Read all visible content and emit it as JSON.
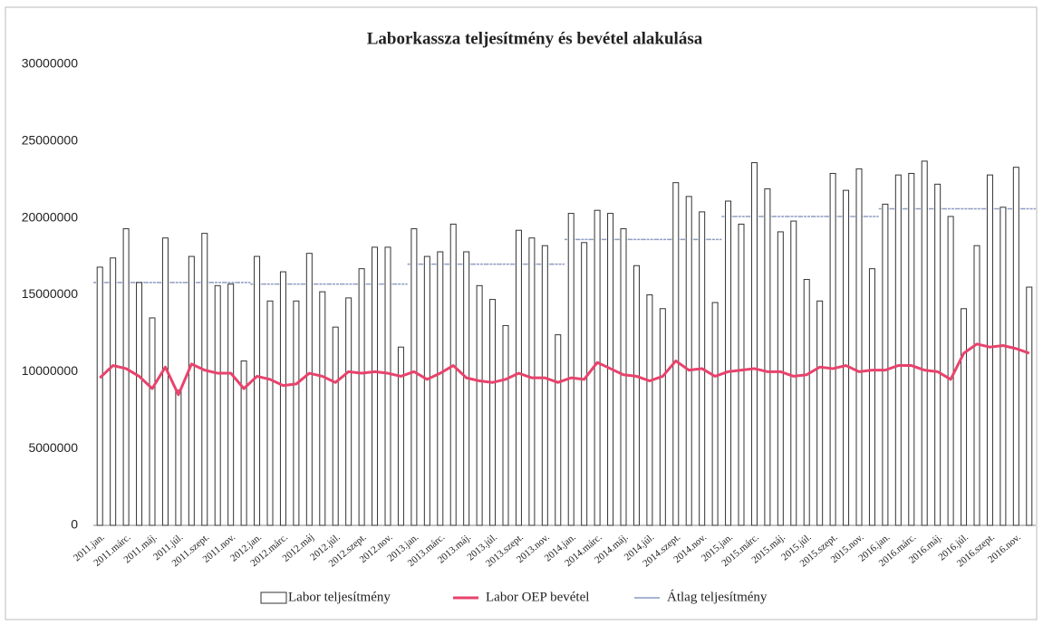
{
  "chart_data": {
    "type": "bar",
    "title": "Laborkassza teljesítmény és bevétel alakulása",
    "categories": [
      "2011.jan.",
      null,
      "2011.márc.",
      null,
      "2011.máj.",
      null,
      "2011.júl.",
      null,
      "2011.szept.",
      null,
      "2011.nov.",
      null,
      "2012.jan.",
      null,
      "2012.márc.",
      null,
      "2012.máj",
      null,
      "2012.júl.",
      null,
      "2012.szept.",
      null,
      "2012.nov.",
      null,
      "2013.jan.",
      null,
      "2013.márc.",
      null,
      "2013.máj.",
      null,
      "2013.júl.",
      null,
      "2013.szept.",
      null,
      "2013.nov.",
      null,
      "2014.jan.",
      null,
      "2014.márc.",
      null,
      "2014.máj.",
      null,
      "2014.júl.",
      null,
      "2014.szept.",
      null,
      "2014.nov.",
      null,
      "2015.jan.",
      null,
      "2015.márc.",
      null,
      "2015.máj.",
      null,
      "2015.júl.",
      null,
      "2015.szept.",
      null,
      "2015.nov.",
      null,
      "2016.jan.",
      null,
      "2016.márc.",
      null,
      "2016.máj.",
      null,
      "2016.júl.",
      null,
      "2016.szept.",
      null,
      "2016.nov.",
      null
    ],
    "series": [
      {
        "name": "Labor teljesítmény",
        "color": "#333333",
        "values": [
          16800000,
          17400000,
          19300000,
          15800000,
          13500000,
          18700000,
          8800000,
          17500000,
          19000000,
          15600000,
          15700000,
          10700000,
          17500000,
          14600000,
          16500000,
          14600000,
          17700000,
          15200000,
          12900000,
          14800000,
          16700000,
          18100000,
          18100000,
          11600000,
          19300000,
          17500000,
          17800000,
          19600000,
          17800000,
          15600000,
          14700000,
          13000000,
          19200000,
          18700000,
          18200000,
          12400000,
          20300000,
          18400000,
          20500000,
          20300000,
          19300000,
          16900000,
          15000000,
          14100000,
          22300000,
          21400000,
          20400000,
          14500000,
          21100000,
          19600000,
          23600000,
          21900000,
          19100000,
          19800000,
          16000000,
          14600000,
          22900000,
          21800000,
          23200000,
          16700000,
          20900000,
          22800000,
          22900000,
          23700000,
          22200000,
          20100000,
          14100000,
          18200000,
          22800000,
          20700000,
          23300000,
          15500000
        ]
      },
      {
        "name": "Labor OEP bevétel",
        "color": "#e8436c",
        "values": [
          9600000,
          10400000,
          10200000,
          9700000,
          8900000,
          10300000,
          8500000,
          10500000,
          10100000,
          9900000,
          9900000,
          8900000,
          9700000,
          9500000,
          9100000,
          9200000,
          9900000,
          9700000,
          9300000,
          10000000,
          9900000,
          10000000,
          9900000,
          9700000,
          10000000,
          9500000,
          9900000,
          10400000,
          9600000,
          9400000,
          9300000,
          9500000,
          9900000,
          9600000,
          9600000,
          9300000,
          9600000,
          9500000,
          10600000,
          10200000,
          9800000,
          9700000,
          9400000,
          9700000,
          10700000,
          10100000,
          10200000,
          9700000,
          10000000,
          10100000,
          10200000,
          10000000,
          10000000,
          9700000,
          9800000,
          10300000,
          10200000,
          10400000,
          10000000,
          10100000,
          10100000,
          10400000,
          10400000,
          10100000,
          10000000,
          9500000,
          11200000,
          11800000,
          11600000,
          11700000,
          11500000,
          11200000
        ]
      },
      {
        "name": "Átlag teljesítmény",
        "color": "#8c9bc0",
        "values": [
          15800000,
          15800000,
          15800000,
          15800000,
          15800000,
          15800000,
          15800000,
          15800000,
          15800000,
          15800000,
          15800000,
          15800000,
          15700000,
          15700000,
          15700000,
          15700000,
          15700000,
          15700000,
          15700000,
          15700000,
          15700000,
          15700000,
          15700000,
          15700000,
          17000000,
          17000000,
          17000000,
          17000000,
          17000000,
          17000000,
          17000000,
          17000000,
          17000000,
          17000000,
          17000000,
          17000000,
          18600000,
          18600000,
          18600000,
          18600000,
          18600000,
          18600000,
          18600000,
          18600000,
          18600000,
          18600000,
          18600000,
          18600000,
          20100000,
          20100000,
          20100000,
          20100000,
          20100000,
          20100000,
          20100000,
          20100000,
          20100000,
          20100000,
          20100000,
          20100000,
          20600000,
          20600000,
          20600000,
          20600000,
          20600000,
          20600000,
          20600000,
          20600000,
          20600000,
          20600000,
          20600000,
          20600000
        ]
      }
    ],
    "ylim": [
      0,
      30000000
    ],
    "yticks": [
      0,
      5000000,
      10000000,
      15000000,
      20000000,
      25000000,
      30000000
    ],
    "grid": false,
    "legend": "bottom"
  }
}
